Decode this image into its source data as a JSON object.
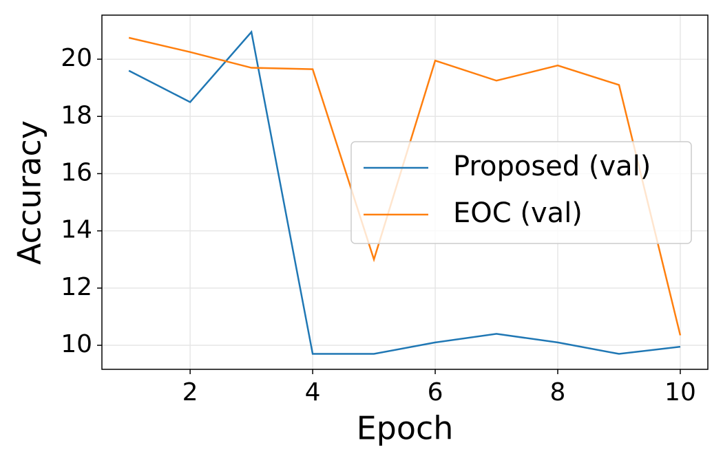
{
  "chart_data": {
    "type": "line",
    "x_label": "Epoch",
    "y_label": "Accuracy",
    "x": [
      1,
      2,
      3,
      4,
      5,
      6,
      7,
      8,
      9,
      10
    ],
    "series": [
      {
        "name": "Proposed (val)",
        "color": "#1f77b4",
        "values": [
          19.6,
          18.5,
          20.95,
          9.7,
          9.7,
          10.1,
          10.4,
          10.1,
          9.7,
          9.95
        ]
      },
      {
        "name": "EOC (val)",
        "color": "#ff7f0e",
        "values": [
          20.75,
          20.25,
          19.7,
          19.65,
          13.0,
          19.95,
          19.25,
          19.78,
          19.1,
          10.35
        ]
      }
    ],
    "xlim": [
      0.56,
      10.45
    ],
    "ylim": [
      9.16,
      21.54
    ],
    "xticks": [
      2,
      4,
      6,
      8,
      10
    ],
    "yticks": [
      10,
      12,
      14,
      16,
      18,
      20
    ],
    "grid": true,
    "legend_position": "center right"
  }
}
